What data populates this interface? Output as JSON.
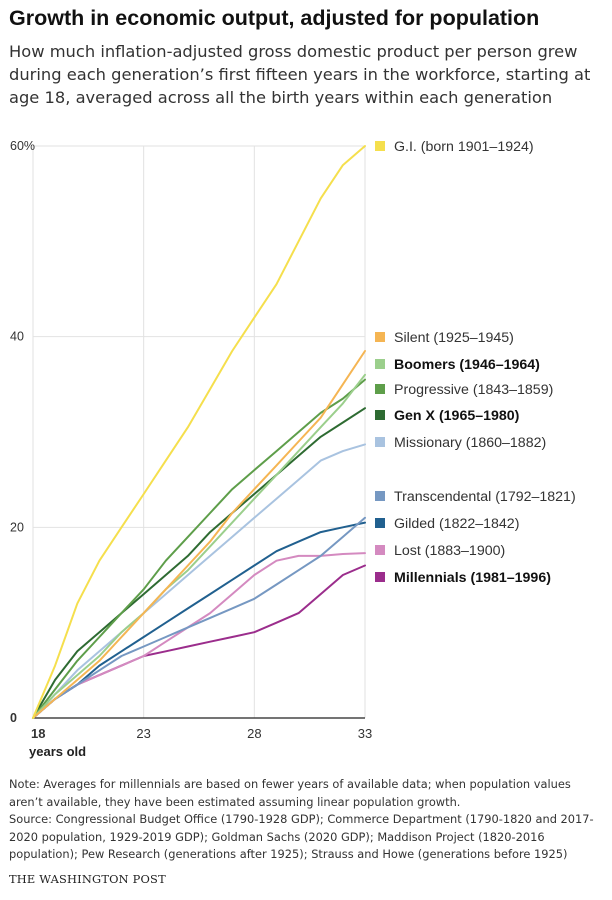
{
  "title": "Growth in economic output, adjusted for population",
  "subtitle": "How much inflation-adjusted gross domestic product per person grew during each generation’s first fifteen years in the workforce, starting at age 18, averaged across all the birth years within each generation",
  "note": "Note: Averages for millennials are based on fewer years of available data; when population values aren’t available, they have been estimated assuming linear population growth.",
  "source": "Source: Congressional Budget Office (1790-1928 GDP); Commerce Department (1790-1820 and 2017-2020 population, 1929-2019 GDP); Goldman Sachs (2020 GDP); Maddison Project (1820-2016 population); Pew Research (generations after 1925); Strauss and Howe (generations before 1925)",
  "credit": "THE WASHINGTON POST",
  "chart_data": {
    "type": "line",
    "xlabel": "years old",
    "xlim": [
      18,
      33
    ],
    "ylim": [
      0,
      60
    ],
    "x_ticks": [
      18,
      23,
      28,
      33
    ],
    "y_ticks": [
      0,
      20,
      40,
      60
    ],
    "y_tick_labels": [
      "0",
      "20",
      "40",
      "60%"
    ],
    "grid": true,
    "legend_position": "right",
    "series": [
      {
        "name": "G.I. (born 1901–1924)",
        "color": "#f5df4d",
        "bold": false,
        "x": [
          18,
          19,
          20,
          21,
          22,
          23,
          24,
          25,
          26,
          27,
          28,
          29,
          30,
          31,
          32,
          33
        ],
        "values": [
          0,
          5.5,
          12,
          16.5,
          20,
          23.5,
          27,
          30.5,
          34.5,
          38.5,
          42,
          45.5,
          50,
          54.5,
          58,
          60
        ]
      },
      {
        "name": "Silent (1925–1945)",
        "color": "#f5b553",
        "bold": false,
        "x": [
          18,
          19,
          20,
          21,
          22,
          23,
          24,
          25,
          26,
          27,
          28,
          29,
          30,
          31,
          32,
          33
        ],
        "values": [
          0,
          2,
          4,
          6,
          8.5,
          11,
          13.5,
          16,
          18.5,
          21.5,
          24,
          26.5,
          29,
          31.5,
          35,
          38.5
        ]
      },
      {
        "name": "Boomers (1946–1964)",
        "color": "#9bcf8c",
        "bold": true,
        "x": [
          18,
          19,
          20,
          21,
          22,
          23,
          24,
          25,
          26,
          27,
          28,
          29,
          30,
          31,
          32,
          33
        ],
        "values": [
          0,
          2.5,
          4.5,
          6.5,
          9,
          11,
          13.5,
          15.5,
          18,
          20.5,
          23,
          25.5,
          28,
          30.5,
          33,
          36
        ]
      },
      {
        "name": "Progressive (1843–1859)",
        "color": "#5e9e4a",
        "bold": false,
        "x": [
          18,
          19,
          20,
          21,
          22,
          23,
          24,
          25,
          26,
          27,
          28,
          29,
          30,
          31,
          32,
          33
        ],
        "values": [
          0,
          3,
          6,
          8.5,
          11,
          13.5,
          16.5,
          19,
          21.5,
          24,
          26,
          28,
          30,
          32,
          33.5,
          35.5
        ]
      },
      {
        "name": "Gen X (1965–1980)",
        "color": "#2e6b32",
        "bold": true,
        "x": [
          18,
          19,
          20,
          21,
          22,
          23,
          24,
          25,
          26,
          27,
          28,
          29,
          30,
          31,
          32,
          33
        ],
        "values": [
          0,
          4,
          7,
          9,
          11,
          13,
          15,
          17,
          19.5,
          21.5,
          23.5,
          25.5,
          27.5,
          29.5,
          31,
          32.5
        ]
      },
      {
        "name": "Missionary (1860–1882)",
        "color": "#a9c3e0",
        "bold": false,
        "x": [
          18,
          19,
          20,
          21,
          22,
          23,
          24,
          25,
          26,
          27,
          28,
          29,
          30,
          31,
          32,
          33
        ],
        "values": [
          0,
          2.5,
          5,
          7,
          9,
          11,
          13,
          15,
          17,
          19,
          21,
          23,
          25,
          27,
          28,
          28.7
        ]
      },
      {
        "name": "Transcendental (1792–1821)",
        "color": "#7698c2",
        "bold": false,
        "x": [
          18,
          19,
          20,
          21,
          22,
          23,
          24,
          25,
          26,
          27,
          28,
          29,
          30,
          31,
          32,
          33
        ],
        "values": [
          0,
          2,
          3.5,
          5,
          6.5,
          7.5,
          8.5,
          9.5,
          10.5,
          11.5,
          12.5,
          14,
          15.5,
          17,
          19,
          21
        ]
      },
      {
        "name": "Gilded (1822–1842)",
        "color": "#21608f",
        "bold": false,
        "x": [
          18,
          19,
          20,
          21,
          22,
          23,
          24,
          25,
          26,
          27,
          28,
          29,
          30,
          31,
          32,
          33
        ],
        "values": [
          0,
          2,
          3.5,
          5.5,
          7,
          8.5,
          10,
          11.5,
          13,
          14.5,
          16,
          17.5,
          18.5,
          19.5,
          20,
          20.5
        ]
      },
      {
        "name": "Lost (1883–1900)",
        "color": "#d48ac0",
        "bold": false,
        "x": [
          18,
          19,
          20,
          21,
          22,
          23,
          24,
          25,
          26,
          27,
          28,
          29,
          30,
          31,
          32,
          33
        ],
        "values": [
          0,
          2,
          3.5,
          4.5,
          5.5,
          6.5,
          8,
          9.5,
          11,
          13,
          15,
          16.5,
          17,
          17,
          17.2,
          17.3
        ]
      },
      {
        "name": "Millennials (1981–1996)",
        "color": "#9b2d8c",
        "bold": true,
        "x": [
          18,
          19,
          20,
          21,
          22,
          23,
          24,
          25,
          26,
          27,
          28,
          29,
          30,
          31,
          32,
          33
        ],
        "values": [
          0,
          2,
          3.5,
          4.5,
          5.5,
          6.5,
          7,
          7.5,
          8,
          8.5,
          9,
          10,
          11,
          13,
          15,
          16
        ]
      }
    ]
  }
}
